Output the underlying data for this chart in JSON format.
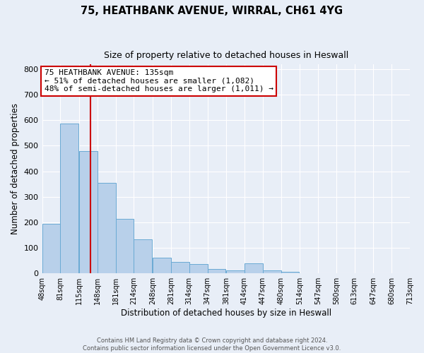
{
  "title1": "75, HEATHBANK AVENUE, WIRRAL, CH61 4YG",
  "title2": "Size of property relative to detached houses in Heswall",
  "xlabel": "Distribution of detached houses by size in Heswall",
  "ylabel": "Number of detached properties",
  "bar_left_edges": [
    48,
    81,
    115,
    148,
    181,
    214,
    248,
    281,
    314,
    347,
    381,
    414,
    447,
    480,
    514,
    547,
    580,
    613,
    647,
    680
  ],
  "bar_heights": [
    193,
    588,
    480,
    355,
    215,
    133,
    62,
    44,
    36,
    17,
    13,
    40,
    13,
    7,
    0,
    0,
    0,
    0,
    0,
    0
  ],
  "bin_width": 33,
  "bar_color": "#b8d0ea",
  "bar_edge_color": "#6aaad4",
  "bg_color": "#e8eef7",
  "grid_color": "#ffffff",
  "property_size": 135,
  "red_line_color": "#cc0000",
  "annotation_text": "75 HEATHBANK AVENUE: 135sqm\n← 51% of detached houses are smaller (1,082)\n48% of semi-detached houses are larger (1,011) →",
  "annotation_box_color": "#ffffff",
  "annotation_box_edge": "#cc0000",
  "tick_labels": [
    "48sqm",
    "81sqm",
    "115sqm",
    "148sqm",
    "181sqm",
    "214sqm",
    "248sqm",
    "281sqm",
    "314sqm",
    "347sqm",
    "381sqm",
    "414sqm",
    "447sqm",
    "480sqm",
    "514sqm",
    "547sqm",
    "580sqm",
    "613sqm",
    "647sqm",
    "680sqm",
    "713sqm"
  ],
  "ylim": [
    0,
    820
  ],
  "yticks": [
    0,
    100,
    200,
    300,
    400,
    500,
    600,
    700,
    800
  ],
  "footer1": "Contains HM Land Registry data © Crown copyright and database right 2024.",
  "footer2": "Contains public sector information licensed under the Open Government Licence v3.0."
}
